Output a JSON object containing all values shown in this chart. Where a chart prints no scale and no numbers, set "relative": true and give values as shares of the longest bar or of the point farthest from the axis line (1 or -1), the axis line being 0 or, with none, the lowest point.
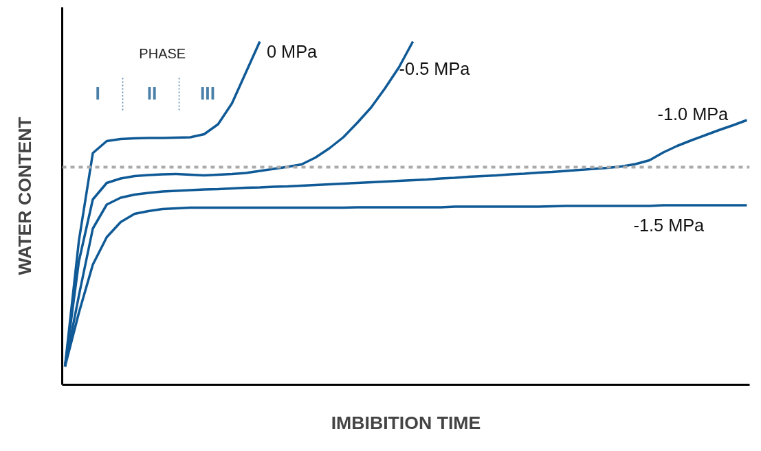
{
  "chart_data": {
    "type": "line",
    "relative": true,
    "xlabel": "IMBIBITION TIME",
    "ylabel": "WATER CONTENT",
    "marker": "none",
    "line_style": "solid",
    "categories": [
      null,
      null,
      null,
      null,
      null,
      null,
      null,
      null,
      null,
      null,
      null,
      null,
      null,
      null,
      null,
      null,
      null,
      null,
      null,
      null,
      null,
      null,
      null,
      null,
      null,
      null,
      null,
      null,
      null,
      null,
      null,
      null,
      null,
      null,
      null,
      null,
      null,
      null,
      null,
      null,
      null,
      null,
      null,
      null,
      null,
      null,
      null,
      null,
      null,
      null
    ],
    "annotations": [
      "PHASE",
      "I",
      "II",
      "III"
    ],
    "ref_lines": [
      {
        "axis": "y",
        "value": 0.634,
        "color": "#aaaaaa",
        "line_style": "dashed"
      }
    ],
    "series": [
      {
        "name": "0 MPa",
        "color": "#0f5a96",
        "values": [
          0.053,
          0.42,
          0.675,
          0.71,
          0.716,
          0.718,
          0.719,
          0.719,
          0.72,
          0.721,
          0.73,
          0.759,
          0.82,
          0.91,
          1.0,
          null,
          null,
          null,
          null,
          null,
          null,
          null,
          null,
          null,
          null,
          null,
          null,
          null,
          null,
          null,
          null,
          null,
          null,
          null,
          null,
          null,
          null,
          null,
          null,
          null,
          null,
          null,
          null,
          null,
          null,
          null,
          null,
          null,
          null,
          null
        ]
      },
      {
        "name": "-0.5 MPa",
        "color": "#0f5a96",
        "values": [
          0.053,
          0.36,
          0.54,
          0.588,
          0.601,
          0.608,
          0.611,
          0.613,
          0.614,
          0.612,
          0.61,
          0.612,
          0.614,
          0.617,
          0.623,
          0.629,
          0.635,
          0.642,
          0.662,
          0.689,
          0.721,
          0.763,
          0.808,
          0.864,
          0.925,
          1.0,
          null,
          null,
          null,
          null,
          null,
          null,
          null,
          null,
          null,
          null,
          null,
          null,
          null,
          null,
          null,
          null,
          null,
          null,
          null,
          null,
          null,
          null,
          null,
          null
        ]
      },
      {
        "name": "-1.0 MPa",
        "color": "#0f5a96",
        "values": [
          0.053,
          0.26,
          0.455,
          0.525,
          0.545,
          0.554,
          0.559,
          0.563,
          0.565,
          0.567,
          0.569,
          0.57,
          0.572,
          0.574,
          0.575,
          0.577,
          0.578,
          0.58,
          0.582,
          0.584,
          0.586,
          0.588,
          0.59,
          0.592,
          0.594,
          0.596,
          0.598,
          0.601,
          0.603,
          0.606,
          0.608,
          0.61,
          0.613,
          0.615,
          0.618,
          0.62,
          0.623,
          0.626,
          0.629,
          0.632,
          0.636,
          0.643,
          0.654,
          0.677,
          0.696,
          0.712,
          0.727,
          0.742,
          0.756,
          0.771
        ]
      },
      {
        "name": "-1.5 MPa",
        "color": "#0f5a96",
        "values": [
          0.053,
          0.21,
          0.35,
          0.43,
          0.474,
          0.498,
          0.506,
          0.512,
          0.514,
          0.516,
          0.516,
          0.516,
          0.516,
          0.516,
          0.516,
          0.516,
          0.516,
          0.516,
          0.516,
          0.516,
          0.516,
          0.517,
          0.517,
          0.517,
          0.517,
          0.517,
          0.517,
          0.517,
          0.519,
          0.519,
          0.519,
          0.519,
          0.519,
          0.519,
          0.519,
          0.52,
          0.521,
          0.521,
          0.521,
          0.521,
          0.521,
          0.521,
          0.521,
          0.523,
          0.523,
          0.523,
          0.523,
          0.523,
          0.523,
          0.523
        ]
      }
    ]
  }
}
